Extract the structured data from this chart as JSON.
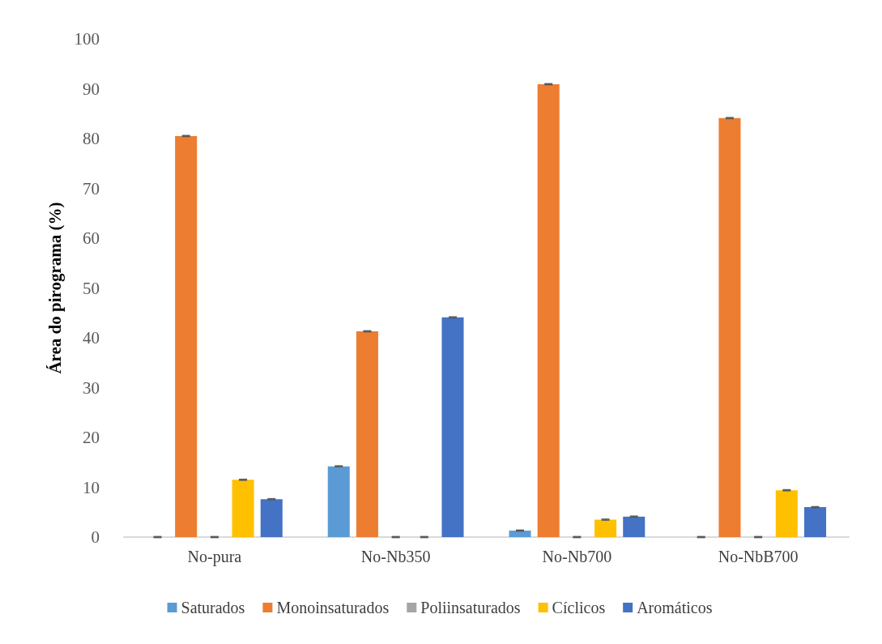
{
  "chart_data": {
    "type": "bar",
    "ylabel": "Área do pirograma (%)",
    "categories": [
      "No-pura",
      "No-Nb350",
      "No-Nb700",
      "No-NbB700"
    ],
    "series": [
      {
        "name": "Saturados",
        "color": "#5b9bd5",
        "values": [
          0,
          14.2,
          1.3,
          0
        ],
        "errors": [
          0.1,
          0.1,
          0.1,
          0.1
        ]
      },
      {
        "name": "Monoinsaturados",
        "color": "#ed7d31",
        "values": [
          80.5,
          41.3,
          90.9,
          84.1
        ],
        "errors": [
          0.1,
          0.1,
          0.1,
          0.1
        ]
      },
      {
        "name": "Poliinsaturados",
        "color": "#a5a5a5",
        "values": [
          0,
          0,
          0,
          0
        ],
        "errors": [
          0.1,
          0.1,
          0.1,
          0.1
        ]
      },
      {
        "name": "Cíclicos",
        "color": "#ffc000",
        "values": [
          11.5,
          0,
          3.5,
          9.4
        ],
        "errors": [
          0.1,
          0.1,
          0.1,
          0.1
        ]
      },
      {
        "name": "Aromáticos",
        "color": "#4472c4",
        "values": [
          7.6,
          44.1,
          4.1,
          6.0
        ],
        "errors": [
          0.1,
          0.1,
          0.1,
          0.1
        ]
      }
    ],
    "ylim": [
      0,
      100
    ],
    "yticks": [
      0,
      10,
      20,
      30,
      40,
      50,
      60,
      70,
      80,
      90,
      100
    ],
    "grid": false,
    "legend": "bottom"
  }
}
